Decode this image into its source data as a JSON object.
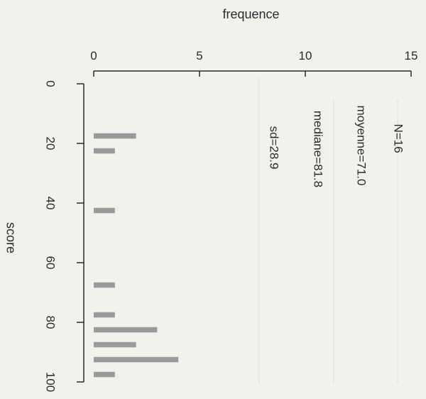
{
  "chart_data": {
    "type": "bar",
    "orientation": "horizontal",
    "xlabel": "frequence",
    "ylabel": "score",
    "xlim": [
      0,
      15
    ],
    "ylim": [
      0,
      100
    ],
    "x_ticks": [
      "0",
      "5",
      "10",
      "15"
    ],
    "y_ticks": [
      "0",
      "20",
      "40",
      "60",
      "80",
      "100"
    ],
    "bin_width": 2.5,
    "bins": [
      {
        "center": 17.5,
        "count": 2
      },
      {
        "center": 22.5,
        "count": 1
      },
      {
        "center": 42.5,
        "count": 1
      },
      {
        "center": 67.5,
        "count": 1
      },
      {
        "center": 77.5,
        "count": 1
      },
      {
        "center": 82.5,
        "count": 3
      },
      {
        "center": 87.5,
        "count": 2
      },
      {
        "center": 92.5,
        "count": 4
      },
      {
        "center": 97.5,
        "count": 1
      }
    ],
    "bar_color": "#9a9a9a",
    "annotations": [
      "N=16",
      "moyenne=71.0",
      "mediane=81.8",
      "sd=28.9"
    ]
  }
}
